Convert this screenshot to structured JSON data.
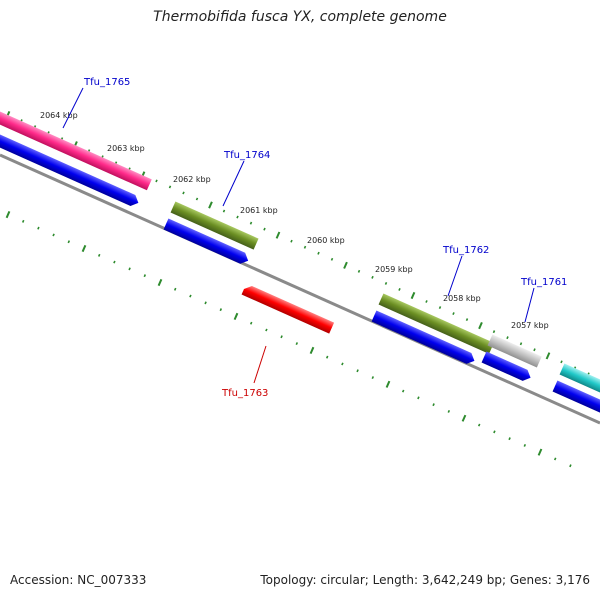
{
  "title": "Thermobifida fusca YX, complete genome",
  "footer": {
    "accession": "Accession: NC_007333",
    "stats": "Topology: circular; Length: 3,642,249 bp; Genes: 3,176"
  },
  "colors": {
    "backbone": "#8a8a8a",
    "tick": "#2e8b2e",
    "cds": "#0000ee",
    "gene_label_blue": "#0000cc",
    "gene_label_red": "#cc0000",
    "magenta": "#ff2a8a",
    "olive": "#6b8e23",
    "red": "#ff0000",
    "silver": "#c0c0c0",
    "cyan": "#20c8c8"
  },
  "kbp_labels": [
    "2064 kbp",
    "2063 kbp",
    "2062 kbp",
    "2061 kbp",
    "2060 kbp",
    "2059 kbp",
    "2058 kbp",
    "2057 kbp"
  ],
  "genes": [
    {
      "name": "Tfu_1765",
      "color": "#0000cc"
    },
    {
      "name": "Tfu_1764",
      "color": "#0000cc"
    },
    {
      "name": "Tfu_1763",
      "color": "#cc0000"
    },
    {
      "name": "Tfu_1762",
      "color": "#0000cc"
    },
    {
      "name": "Tfu_1761",
      "color": "#0000cc"
    }
  ]
}
